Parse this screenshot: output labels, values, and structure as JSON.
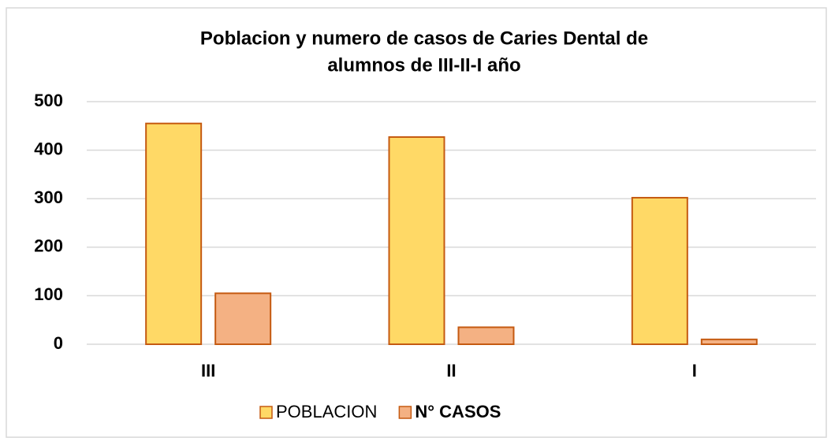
{
  "chart_data": {
    "type": "bar",
    "title": [
      "Poblacion y  numero de casos de Caries Dental de",
      "alumnos de III-II-I  año"
    ],
    "categories": [
      "III",
      "II",
      "I"
    ],
    "series": [
      {
        "name": "POBLACION",
        "color": "#ffd966",
        "values": [
          455,
          427,
          302
        ]
      },
      {
        "name": "N° CASOS",
        "color": "#f4b183",
        "values": [
          105,
          35,
          10
        ]
      }
    ],
    "ylim": [
      0,
      500
    ],
    "yticks": [
      0,
      100,
      200,
      300,
      400,
      500
    ],
    "grid": true,
    "legend": "bottom"
  }
}
